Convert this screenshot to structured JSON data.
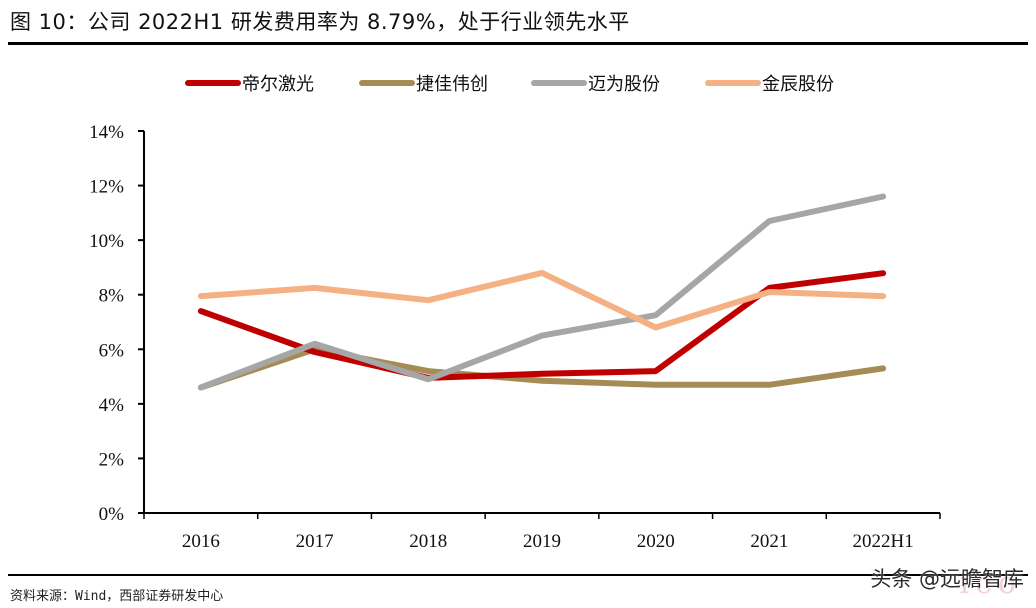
{
  "figure": {
    "title": "图 10：公司 2022H1 研发费用率为 8.79%，处于行业领先水平",
    "source": "资料来源：Wind，西部证券研发中心",
    "watermark": "头条 @远瞻智库"
  },
  "chart_data": {
    "type": "line",
    "title": "图 10：公司 2022H1 研发费用率为 8.79%，处于行业领先水平",
    "xlabel": "",
    "ylabel": "",
    "categories": [
      "2016",
      "2017",
      "2018",
      "2019",
      "2020",
      "2021",
      "2022H1"
    ],
    "ylim": [
      0,
      14
    ],
    "yticks": [
      0,
      2,
      4,
      6,
      8,
      10,
      12,
      14
    ],
    "ytick_labels": [
      "0%",
      "2%",
      "4%",
      "6%",
      "8%",
      "10%",
      "12%",
      "14%"
    ],
    "grid": false,
    "legend_position": "top-center",
    "series": [
      {
        "name": "帝尔激光",
        "color": "#C00000",
        "values": [
          7.4,
          5.9,
          4.95,
          5.1,
          5.2,
          8.25,
          8.79
        ]
      },
      {
        "name": "捷佳伟创",
        "color": "#A58C55",
        "values": [
          4.6,
          6.0,
          5.2,
          4.85,
          4.7,
          4.7,
          5.3
        ]
      },
      {
        "name": "迈为股份",
        "color": "#A6A6A6",
        "values": [
          4.6,
          6.2,
          4.9,
          6.5,
          7.25,
          10.7,
          11.6
        ]
      },
      {
        "name": "金辰股份",
        "color": "#F4B183",
        "values": [
          7.95,
          8.25,
          7.8,
          8.8,
          6.8,
          8.1,
          7.95
        ]
      }
    ]
  }
}
